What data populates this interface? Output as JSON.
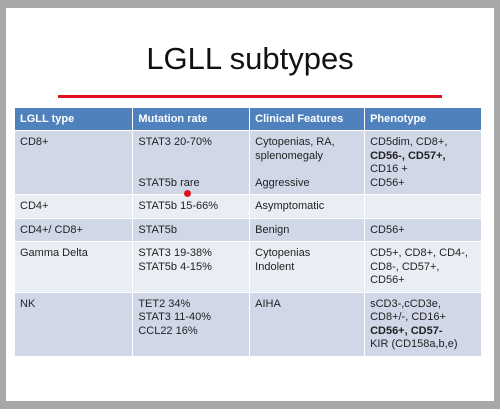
{
  "title": "LGLL subtypes",
  "table": {
    "header": [
      "LGLL type",
      "Mutation rate",
      "Clinical Features",
      "Phenotype"
    ],
    "rows": [
      [
        [
          "CD8+"
        ],
        [
          "STAT3 20-70%",
          "STAT5b rare"
        ],
        [
          "Cytopenias, RA,",
          "splenomegaly",
          "Aggressive"
        ],
        [
          "CD5dim, CD8+,",
          "CD56-, CD57+,",
          "CD16 +",
          "CD56+"
        ]
      ],
      [
        [
          "CD4+"
        ],
        [
          "STAT5b 15-66%"
        ],
        [
          "Asymptomatic"
        ],
        []
      ],
      [
        [
          "CD4+/ CD8+"
        ],
        [
          "STAT5b"
        ],
        [
          "Benign"
        ],
        [
          "CD56+"
        ]
      ],
      [
        [
          "Gamma Delta"
        ],
        [
          "STAT3  19-38%",
          "STAT5b 4-15%"
        ],
        [
          "Cytopenias",
          "Indolent"
        ],
        [
          "CD5+, CD8+, CD4-,",
          "CD8-, CD57+,",
          "CD56+"
        ]
      ],
      [
        [
          "NK"
        ],
        [
          "TET2 34%",
          "STAT3 11-40%",
          "CCL22 16%"
        ],
        [
          "AIHA"
        ],
        [
          "sCD3-,cCD3e,",
          "CD8+/-, CD16+",
          "CD56+, CD57-",
          "KIR (CD158a,b,e)"
        ]
      ]
    ]
  }
}
